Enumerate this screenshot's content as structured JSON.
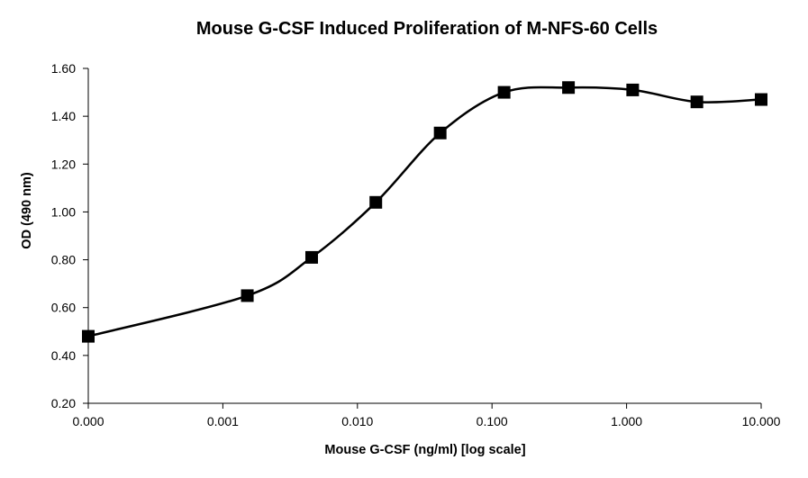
{
  "chart_data": {
    "type": "line",
    "title": "Mouse G-CSF Induced Proliferation of M-NFS-60 Cells",
    "xlabel": "Mouse G-CSF (ng/ml) [log scale]",
    "ylabel": "OD (490 nm)",
    "x_scale": "log",
    "x_ticks": [
      "0.000",
      "0.001",
      "0.010",
      "0.100",
      "1.000",
      "10.000"
    ],
    "y_ticks": [
      "0.20",
      "0.40",
      "0.60",
      "0.80",
      "1.00",
      "1.20",
      "1.40",
      "1.60"
    ],
    "ylim": [
      0.2,
      1.6
    ],
    "grid": false,
    "legend": "none",
    "line_style": "smooth",
    "marker": "square",
    "color": "#000000",
    "series": [
      {
        "x": [
          0.0001,
          0.00152,
          0.00457,
          0.0137,
          0.0412,
          0.123,
          0.37,
          1.11,
          3.33,
          10.0
        ],
        "y": [
          0.48,
          0.65,
          0.81,
          1.04,
          1.33,
          1.5,
          1.52,
          1.51,
          1.46,
          1.47
        ]
      }
    ]
  }
}
